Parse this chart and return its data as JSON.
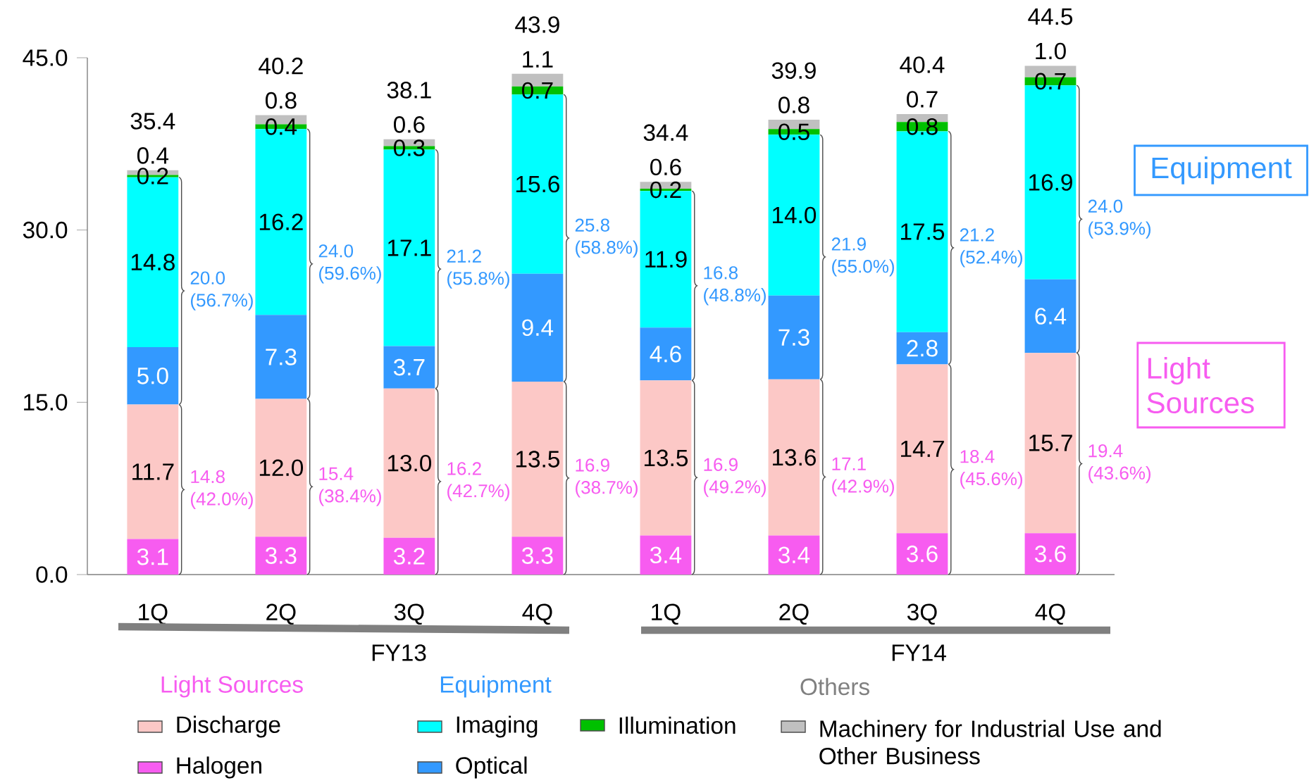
{
  "chart_data": {
    "type": "bar",
    "stacked": true,
    "categories": [
      "1Q",
      "2Q",
      "3Q",
      "4Q",
      "1Q",
      "2Q",
      "3Q",
      "4Q"
    ],
    "series": [
      {
        "name": "Halogen",
        "color": "#f75cf0",
        "values": [
          3.1,
          3.3,
          3.2,
          3.3,
          3.4,
          3.4,
          3.6,
          3.6
        ],
        "value_labels": [
          "3.1",
          "3.3",
          "3.2",
          "3.3",
          "3.4",
          "3.4",
          "3.6",
          "3.6"
        ]
      },
      {
        "name": "Discharge",
        "color": "#fcc8c6",
        "values": [
          11.7,
          12.0,
          13.0,
          13.5,
          13.5,
          13.6,
          14.7,
          15.7
        ],
        "value_labels": [
          "11.7",
          "12.0",
          "13.0",
          "13.5",
          "13.5",
          "13.6",
          "14.7",
          "15.7"
        ]
      },
      {
        "name": "Optical",
        "color": "#3399ff",
        "values": [
          5.0,
          7.3,
          3.7,
          9.4,
          4.6,
          7.3,
          2.8,
          6.4
        ],
        "value_labels": [
          "5.0",
          "7.3",
          "3.7",
          "9.4",
          "4.6",
          "7.3",
          "2.8",
          "6.4"
        ]
      },
      {
        "name": "Imaging",
        "color": "#00ffff",
        "values": [
          14.8,
          16.2,
          17.1,
          15.6,
          11.9,
          14.0,
          17.5,
          16.9
        ],
        "value_labels": [
          "14.8",
          "16.2",
          "17.1",
          "15.6",
          "11.9",
          "14.0",
          "17.5",
          "16.9"
        ]
      },
      {
        "name": "Illumination",
        "color": "#00c000",
        "values": [
          0.2,
          0.4,
          0.3,
          0.7,
          0.2,
          0.5,
          0.8,
          0.7
        ],
        "value_labels": [
          "0.2",
          "0.4",
          "0.3",
          "0.7",
          "0.2",
          "0.5",
          "0.8",
          "0.7"
        ]
      },
      {
        "name": "Machinery for Industrial Use and Other Business",
        "color": "#c0c0c0",
        "values": [
          0.4,
          0.8,
          0.6,
          1.1,
          0.6,
          0.8,
          0.7,
          1.0
        ],
        "value_labels": [
          "0.4",
          "0.8",
          "0.6",
          "1.1",
          "0.6",
          "0.8",
          "0.7",
          "1.0"
        ]
      }
    ],
    "totals": [
      "35.4",
      "40.2",
      "38.1",
      "43.9",
      "34.4",
      "39.9",
      "40.4",
      "44.5"
    ],
    "ylim": [
      0,
      45
    ],
    "yticks": [
      {
        "value": 0,
        "label": "0.0"
      },
      {
        "value": 15,
        "label": "15.0"
      },
      {
        "value": 30,
        "label": "30.0"
      },
      {
        "value": 45,
        "label": "45.0"
      }
    ],
    "legend": "bottom",
    "annotations": [
      "20.0 (56.7%)",
      "24.0 (59.6%)",
      "21.2 (55.8%)",
      "25.8 (58.8%)",
      "16.8 (48.8%)",
      "21.9 (55.0%)",
      "21.2 (52.4%)",
      "24.0 (53.9%)",
      "14.8 (42.0%)",
      "15.4 (38.4%)",
      "16.2 (42.7%)",
      "16.9 (38.7%)",
      "16.9 (49.2%)",
      "17.1 (42.9%)",
      "18.4 (45.6%)",
      "19.4 (43.6%)",
      "FY13",
      "FY14",
      "Equipment",
      "Light Sources",
      "Light Sources",
      "Equipment",
      "Others"
    ]
  }
}
